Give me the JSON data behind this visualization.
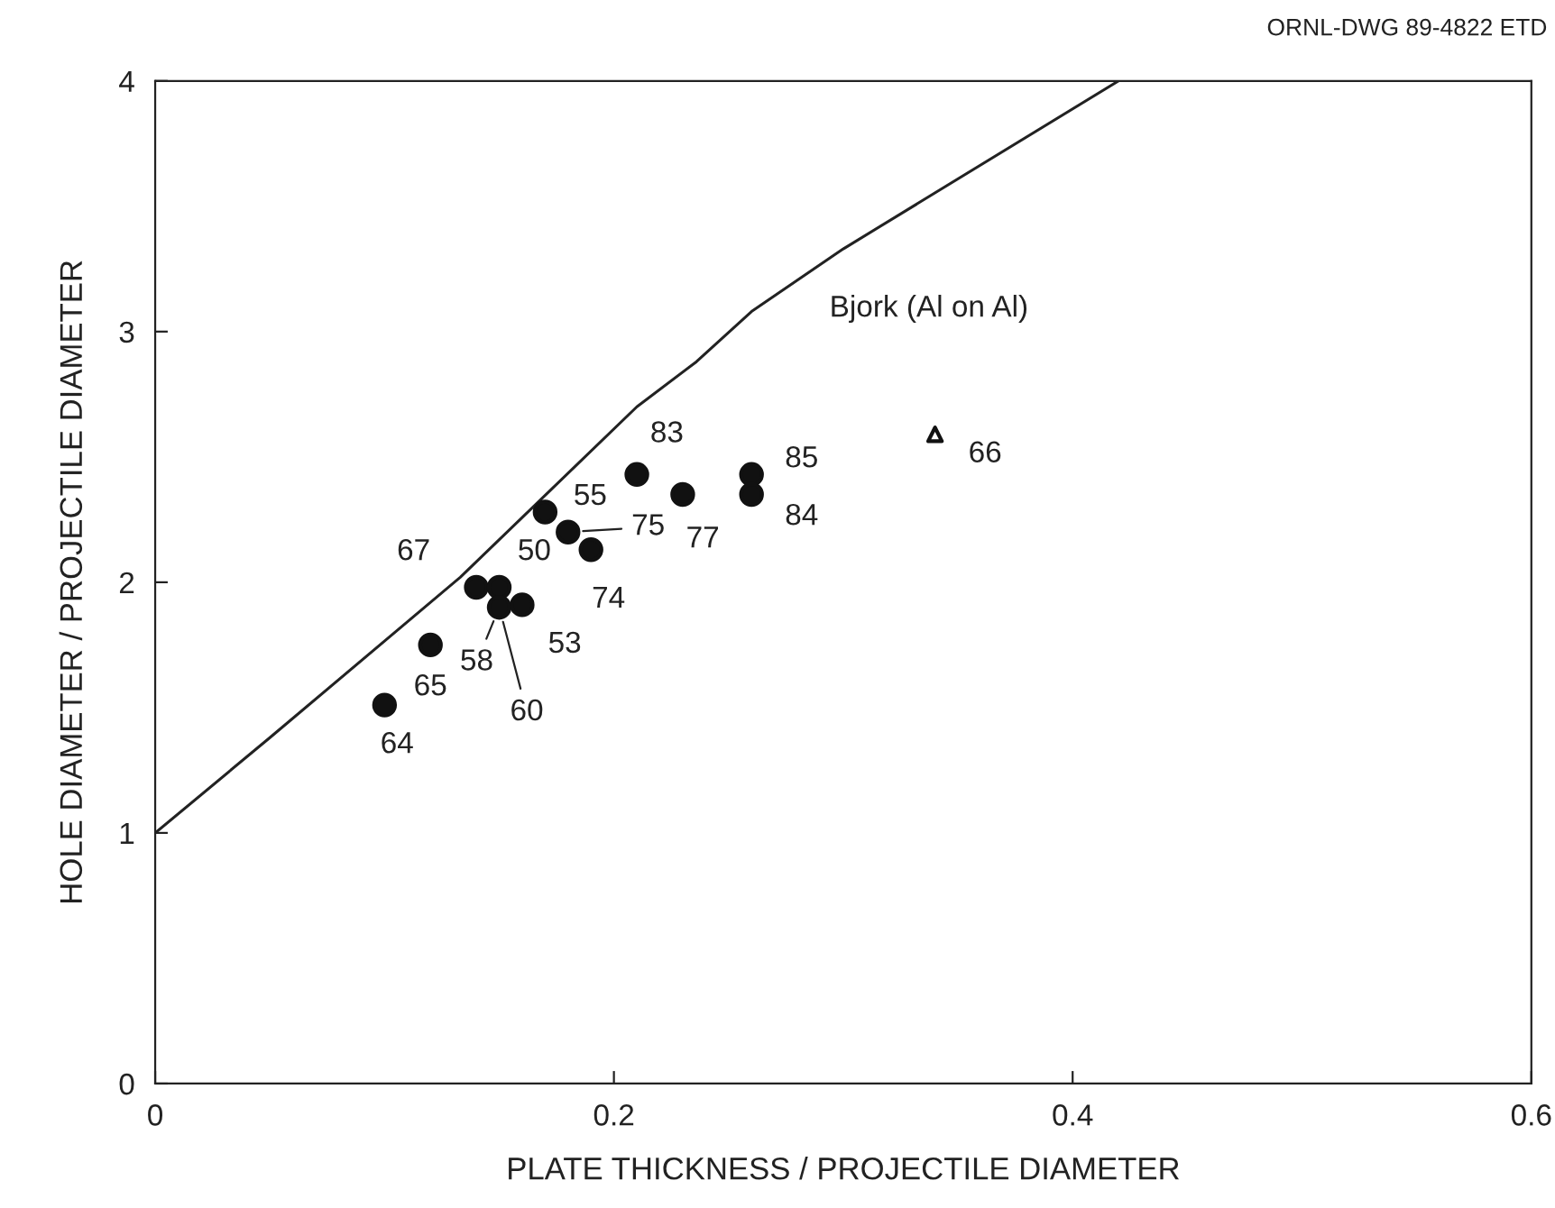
{
  "chart_data": {
    "type": "scatter",
    "xlabel": "PLATE THICKNESS / PROJECTILE DIAMETER",
    "ylabel": "HOLE DIAMETER / PROJECTILE DIAMETER",
    "xlim": [
      0,
      0.6
    ],
    "ylim": [
      0,
      4
    ],
    "xticks": [
      0,
      0.2,
      0.4,
      0.6
    ],
    "yticks": [
      0,
      1,
      2,
      3,
      4
    ],
    "grid": false,
    "legend": false,
    "series": [
      {
        "marker": "circle",
        "color": "#111111",
        "x": [
          0.1,
          0.12,
          0.14,
          0.15,
          0.15,
          0.16,
          0.17,
          0.18,
          0.19,
          0.21,
          0.23,
          0.26,
          0.26
        ],
        "values": [
          1.51,
          1.75,
          1.98,
          1.98,
          1.9,
          1.91,
          2.28,
          2.2,
          2.13,
          2.43,
          2.35,
          2.43,
          2.35
        ]
      },
      {
        "marker": "triangle",
        "color": "#111111",
        "x": [
          0.34
        ],
        "values": [
          2.59
        ]
      },
      {
        "type": "line",
        "name": "Bjork (Al on Al)",
        "color": "#222222",
        "marker": "none",
        "line_style": "solid",
        "x": [
          0,
          0.05,
          0.133,
          0.21,
          0.236,
          0.26,
          0.3,
          0.42
        ],
        "values": [
          1.0,
          1.38,
          2.02,
          2.7,
          2.88,
          3.08,
          3.33,
          4.0
        ]
      }
    ],
    "annotations": [
      {
        "text": "64",
        "x": 0.1,
        "y": 1.51
      },
      {
        "text": "65",
        "x": 0.12,
        "y": 1.75
      },
      {
        "text": "67",
        "x": 0.14,
        "y": 1.98
      },
      {
        "text": "50",
        "x": 0.15,
        "y": 1.98
      },
      {
        "text": "58",
        "x": 0.15,
        "y": 1.9
      },
      {
        "text": "60",
        "x": 0.15,
        "y": 1.9
      },
      {
        "text": "53",
        "x": 0.16,
        "y": 1.91
      },
      {
        "text": "55",
        "x": 0.17,
        "y": 2.28
      },
      {
        "text": "75",
        "x": 0.18,
        "y": 2.2
      },
      {
        "text": "74",
        "x": 0.19,
        "y": 2.13
      },
      {
        "text": "83",
        "x": 0.21,
        "y": 2.43
      },
      {
        "text": "77",
        "x": 0.23,
        "y": 2.35
      },
      {
        "text": "85",
        "x": 0.26,
        "y": 2.43
      },
      {
        "text": "84",
        "x": 0.26,
        "y": 2.35
      },
      {
        "text": "66",
        "x": 0.34,
        "y": 2.59
      },
      "ORNL-DWG 89-4822 ETD"
    ]
  }
}
